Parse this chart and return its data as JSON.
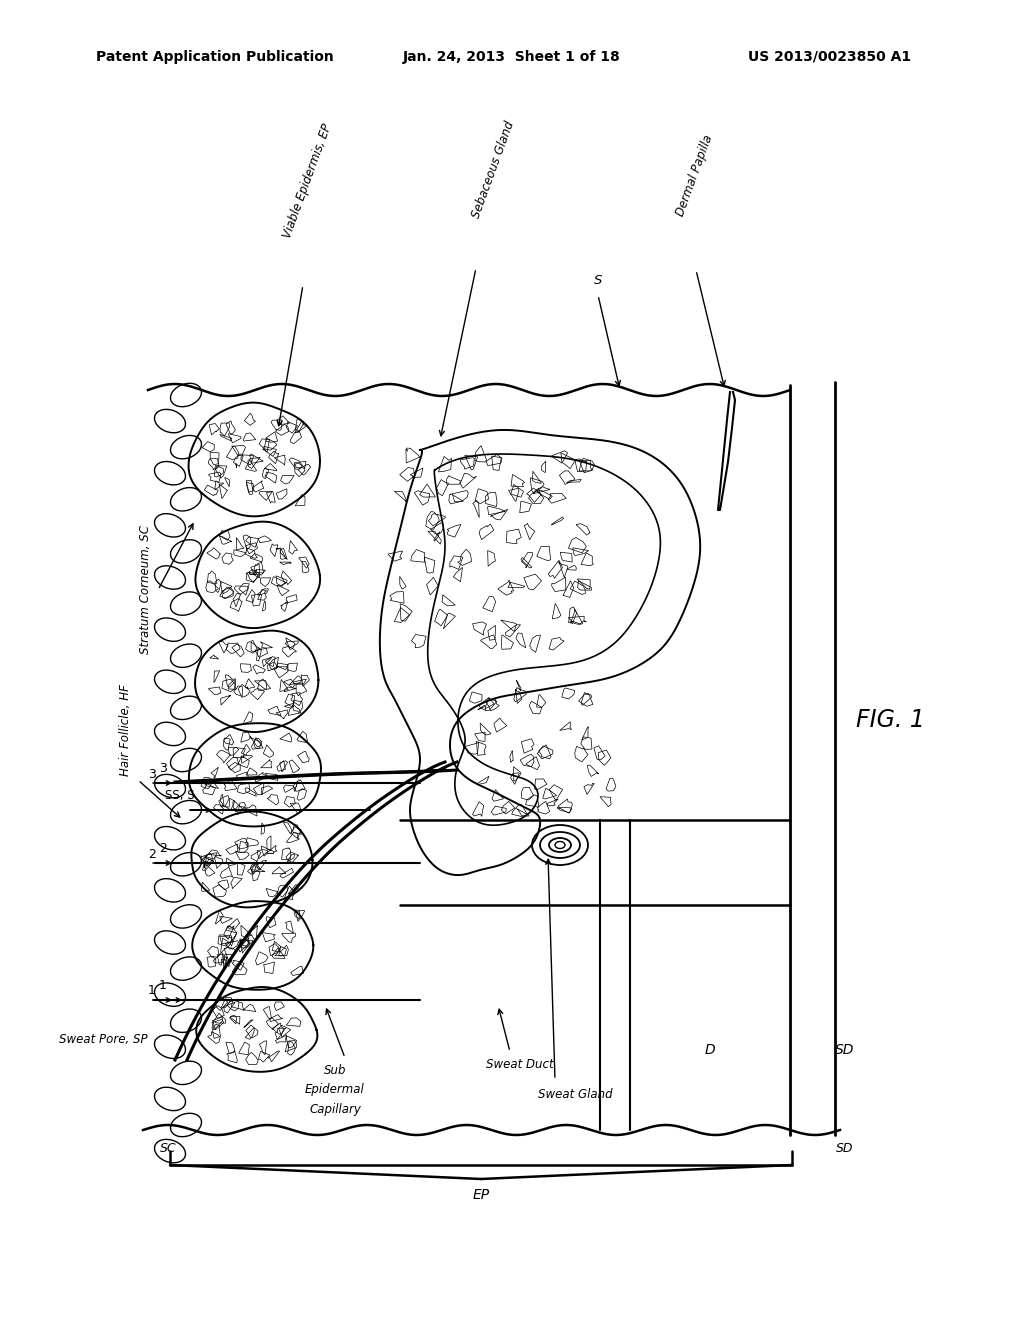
{
  "header_left": "Patent Application Publication",
  "header_center": "Jan. 24, 2013  Sheet 1 of 18",
  "header_right": "US 2013/0023850 A1",
  "figure_label": "FIG. 1",
  "bg_color": "#ffffff",
  "lc": "#000000",
  "label_stratum_corneum": "Stratum Corneum, SC",
  "label_viable_epidermis": "Viable Epidermis, EP",
  "label_sebaceous_gland": "Sebaceous Gland",
  "label_dermal_papilla": "Dermal Papilla",
  "label_s": "S",
  "label_ss_s": "SS, S",
  "label_hair_follicle": "Hair Follicle, HF",
  "label_sweat_pore": "Sweat Pore, SP",
  "label_sub_cap_line1": "Sub",
  "label_sub_cap_line2": "Epidermal",
  "label_sub_cap_line3": "Capillary",
  "label_sweat_duct": "Sweat Duct",
  "label_sweat_gland": "Sweat Gland",
  "label_sc_bot": "SC",
  "label_ep_bot": "EP",
  "label_d": "D",
  "label_sd_r": "SD",
  "label_sd_bot": "SD",
  "label_1": "1",
  "label_2": "2",
  "label_3": "3"
}
